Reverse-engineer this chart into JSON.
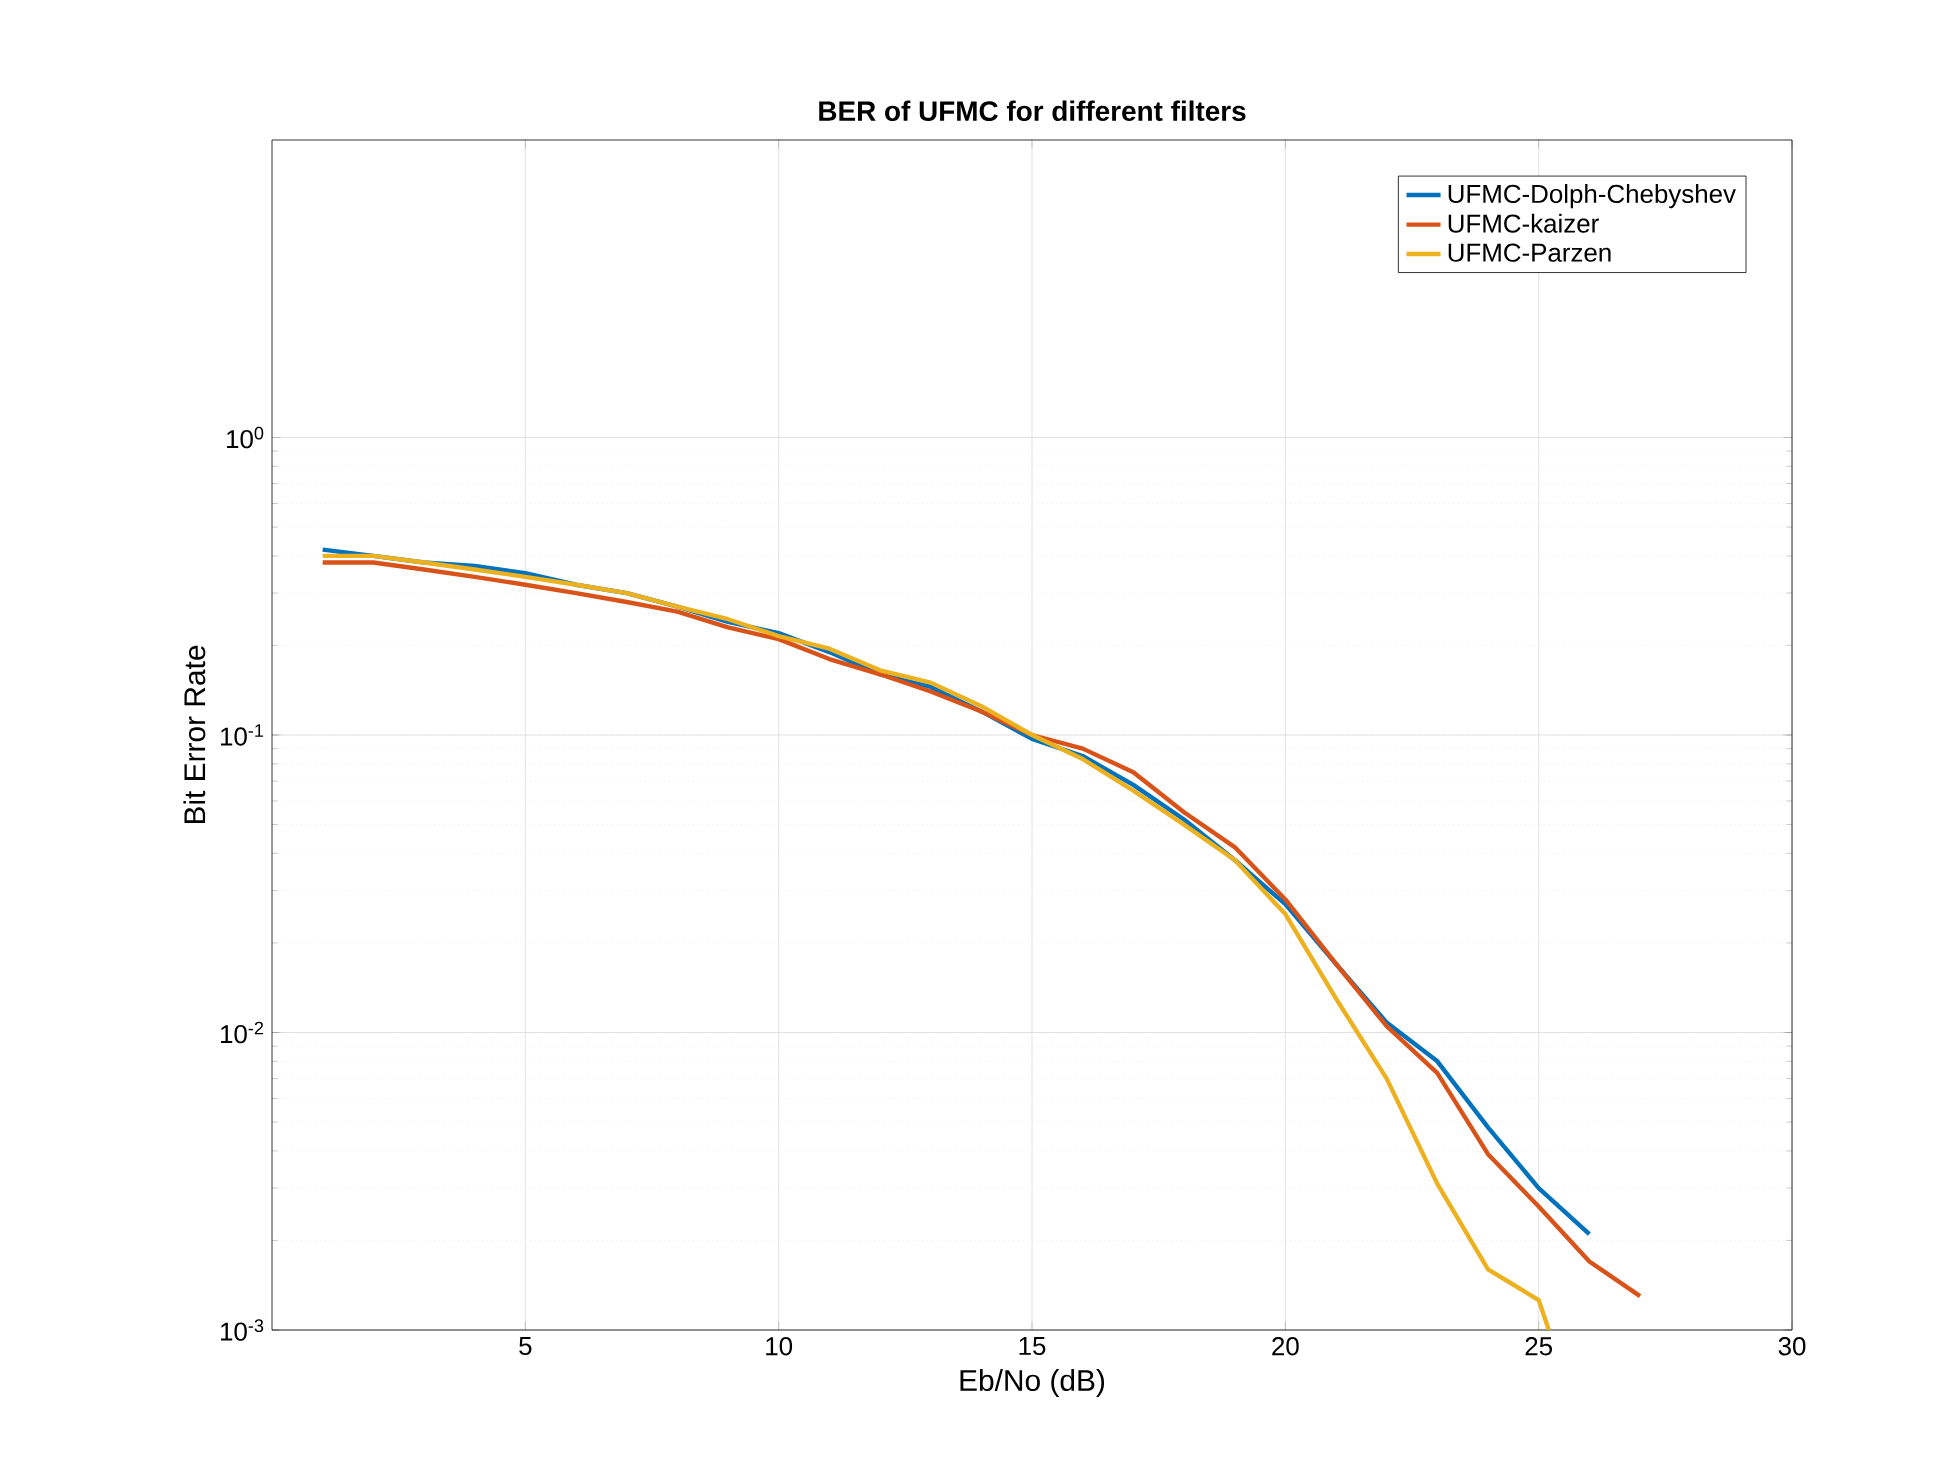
{
  "chart_data": {
    "type": "line",
    "title": "BER of UFMC for different filters",
    "xlabel": "Eb/No (dB)",
    "ylabel": "Bit Error Rate",
    "log": "y",
    "grid": true,
    "legend": "top right",
    "xlim": [
      0,
      30
    ],
    "xticks": [
      5,
      10,
      15,
      20,
      25,
      30
    ],
    "ylim": [
      0.001,
      10
    ],
    "yticks": [
      {
        "value": 0.001,
        "label": "10$^{-3}$"
      },
      {
        "value": 0.01,
        "label": "10$^{-2}$"
      },
      {
        "value": 0.1,
        "label": "10$^{-1}$"
      },
      {
        "value": 1,
        "label": "10$^{0}$"
      }
    ],
    "series": [
      {
        "name": "UFMC-Dolph-Chebyshev",
        "color": "#0072bd",
        "x": [
          1,
          2,
          3,
          4,
          5,
          6,
          7,
          8,
          9,
          10,
          11,
          12,
          13,
          14,
          15,
          16,
          17,
          18,
          19,
          20,
          21,
          22,
          23,
          24,
          25,
          26
        ],
        "values": [
          0.42,
          0.4,
          0.38,
          0.37,
          0.35,
          0.32,
          0.3,
          0.27,
          0.24,
          0.22,
          0.19,
          0.16,
          0.145,
          0.12,
          0.097,
          0.085,
          0.068,
          0.052,
          0.038,
          0.027,
          0.017,
          0.0108,
          0.008,
          0.0048,
          0.003,
          0.0021
        ]
      },
      {
        "name": "UFMC-kaizer",
        "color": "#d95319",
        "x": [
          1,
          2,
          3,
          4,
          5,
          6,
          7,
          8,
          9,
          10,
          11,
          12,
          13,
          14,
          15,
          16,
          17,
          18,
          19,
          20,
          21,
          22,
          23,
          24,
          25,
          26,
          27
        ],
        "values": [
          0.38,
          0.38,
          0.36,
          0.34,
          0.32,
          0.3,
          0.28,
          0.26,
          0.23,
          0.21,
          0.18,
          0.16,
          0.14,
          0.12,
          0.1,
          0.09,
          0.075,
          0.055,
          0.042,
          0.028,
          0.017,
          0.0105,
          0.0073,
          0.0039,
          0.0026,
          0.0017,
          0.0013
        ]
      },
      {
        "name": "UFMC-Parzen",
        "color": "#edb120",
        "x": [
          1,
          2,
          3,
          4,
          5,
          6,
          7,
          8,
          9,
          10,
          11,
          12,
          13,
          14,
          15,
          16,
          17,
          18,
          19,
          20,
          21,
          22,
          23,
          24,
          25,
          25.2
        ],
        "values": [
          0.4,
          0.4,
          0.38,
          0.36,
          0.34,
          0.32,
          0.3,
          0.27,
          0.245,
          0.215,
          0.195,
          0.165,
          0.15,
          0.125,
          0.1,
          0.083,
          0.065,
          0.05,
          0.038,
          0.025,
          0.013,
          0.007,
          0.0031,
          0.0016,
          0.00126,
          0.001
        ]
      }
    ]
  }
}
